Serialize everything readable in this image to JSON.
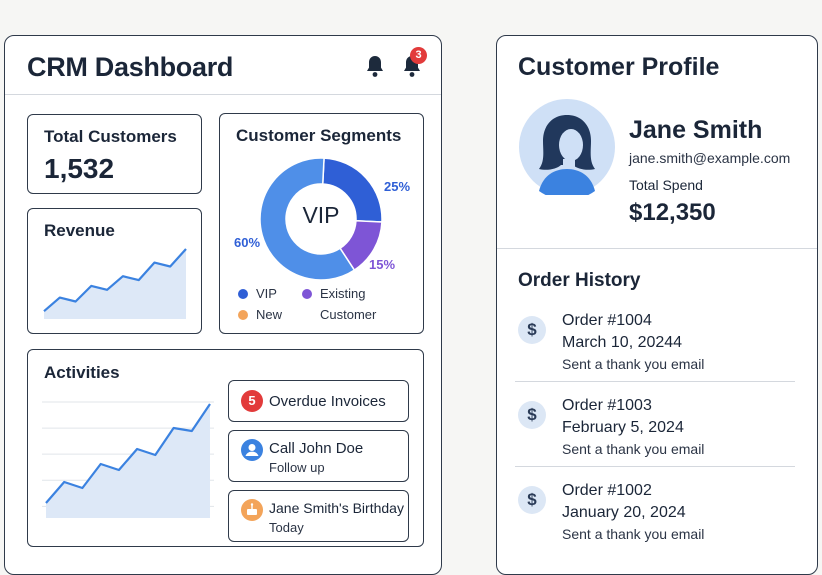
{
  "dashboard": {
    "title": "CRM Dashboard",
    "notification_count": "3",
    "total_customers": {
      "label": "Total Customers",
      "value": "1,532"
    },
    "revenue": {
      "label": "Revenue",
      "trend": [
        8,
        22,
        18,
        34,
        30,
        44,
        40,
        58,
        54,
        72
      ]
    },
    "segments": {
      "label": "Customer Segments",
      "center_label": "VIP",
      "slices": [
        {
          "name": "VIP",
          "percent": 25,
          "label": "25%",
          "color": "#2f5fd6"
        },
        {
          "name": "Existing Customer",
          "percent": 15,
          "label": "15%",
          "color": "#7e55d6"
        },
        {
          "name": "New",
          "percent": 60,
          "label": "60%",
          "color": "#4f8fe8"
        }
      ],
      "legend": [
        {
          "text": "VIP",
          "color": "#2f5fd6"
        },
        {
          "text": "Existing",
          "color": "#7e55d6"
        },
        {
          "text": "New",
          "color": "#f3a45a"
        },
        {
          "text": "Customer",
          "color": ""
        }
      ]
    },
    "activities": {
      "label": "Activities",
      "trend": [
        10,
        24,
        20,
        36,
        32,
        46,
        42,
        60,
        58,
        76
      ],
      "items": [
        {
          "badge": "5",
          "title": "Overdue Invoices",
          "subtitle": "",
          "icon": "count-badge",
          "color": "#e23b3b"
        },
        {
          "badge": "",
          "title": "Call John Doe",
          "subtitle": "Follow up",
          "icon": "user-icon",
          "color": "#3b82e0"
        },
        {
          "badge": "",
          "title": "Jane Smith's Birthday",
          "subtitle": "Today",
          "icon": "cake-icon",
          "color": "#f3a45a"
        }
      ]
    }
  },
  "profile": {
    "title": "Customer Profile",
    "name": "Jane Smith",
    "email": "jane.smith@example.com",
    "spend_label": "Total Spend",
    "spend_value": "$12,350",
    "order_history_title": "Order History",
    "orders": [
      {
        "id": "Order #1004",
        "date": "March 10, 20244",
        "note": "Sent a thank you email"
      },
      {
        "id": "Order #1003",
        "date": "February 5, 2024",
        "note": "Sent a thank you email"
      },
      {
        "id": "Order #1002",
        "date": "January 20, 2024",
        "note": "Sent a thank you email"
      }
    ]
  }
}
